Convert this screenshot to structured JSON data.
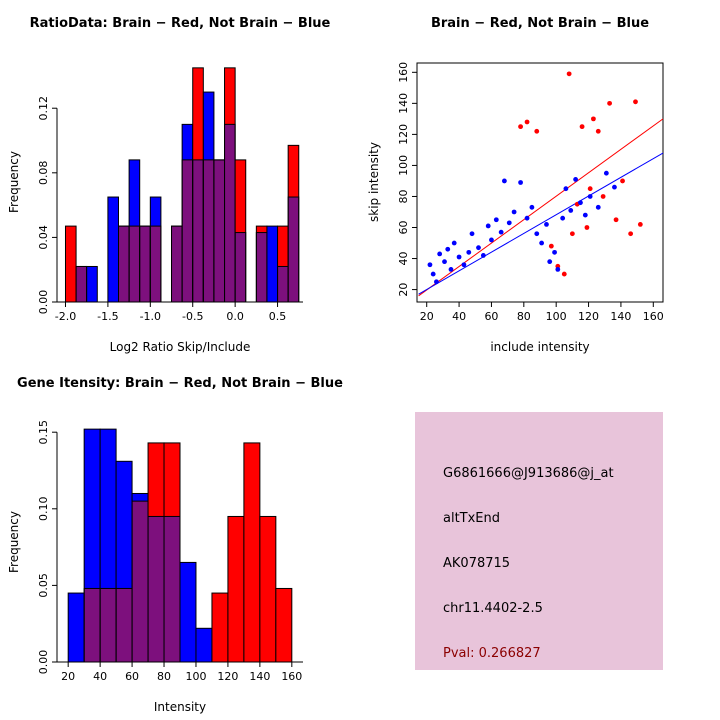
{
  "colors": {
    "red": "#FF0000",
    "blue": "#0000FF",
    "overlap": "#7D107D",
    "bar_border": "#000000",
    "axis": "#000000",
    "info_box_bg": "#E8C4DA",
    "info_text": "#000000",
    "pval_text": "#8B0000",
    "background": "#FFFFFF"
  },
  "chart_data": [
    {
      "id": "ratio-histogram",
      "type": "bar",
      "title": "RatioData: Brain − Red, Not Brain − Blue",
      "xlabel": "Log2 Ratio Skip/Include",
      "ylabel": "Frequency",
      "legend_note": "Brain = red bars, Not Brain = blue bars, overlap = purple",
      "xlim": [
        -2.1,
        0.8
      ],
      "ylim": [
        0,
        0.148
      ],
      "xticks": [
        -2.0,
        -1.5,
        -1.0,
        -0.5,
        0.0,
        0.5
      ],
      "xtick_labels": [
        "-2.0",
        "-1.5",
        "-1.0",
        "-0.5",
        "0.0",
        "0.5"
      ],
      "yticks": [
        0,
        0.04,
        0.08,
        0.12
      ],
      "ytick_labels": [
        "0.00",
        "0.04",
        "0.08",
        "0.12"
      ],
      "bin_width": 0.125,
      "bins": [
        {
          "x": -2.0,
          "red": 0.047,
          "blue": 0.0
        },
        {
          "x": -1.875,
          "red": 0.022,
          "blue": 0.022
        },
        {
          "x": -1.75,
          "red": 0.0,
          "blue": 0.022
        },
        {
          "x": -1.625,
          "red": 0.0,
          "blue": 0.0
        },
        {
          "x": -1.5,
          "red": 0.0,
          "blue": 0.065
        },
        {
          "x": -1.375,
          "red": 0.047,
          "blue": 0.047
        },
        {
          "x": -1.25,
          "red": 0.047,
          "blue": 0.088
        },
        {
          "x": -1.125,
          "red": 0.047,
          "blue": 0.047
        },
        {
          "x": -1.0,
          "red": 0.047,
          "blue": 0.065
        },
        {
          "x": -0.875,
          "red": 0.0,
          "blue": 0.0
        },
        {
          "x": -0.75,
          "red": 0.047,
          "blue": 0.047
        },
        {
          "x": -0.625,
          "red": 0.088,
          "blue": 0.11
        },
        {
          "x": -0.5,
          "red": 0.145,
          "blue": 0.088
        },
        {
          "x": -0.375,
          "red": 0.088,
          "blue": 0.13
        },
        {
          "x": -0.25,
          "red": 0.088,
          "blue": 0.088
        },
        {
          "x": -0.125,
          "red": 0.145,
          "blue": 0.11
        },
        {
          "x": 0.0,
          "red": 0.088,
          "blue": 0.043
        },
        {
          "x": 0.125,
          "red": 0.0,
          "blue": 0.0
        },
        {
          "x": 0.25,
          "red": 0.047,
          "blue": 0.043
        },
        {
          "x": 0.375,
          "red": 0.0,
          "blue": 0.047
        },
        {
          "x": 0.5,
          "red": 0.047,
          "blue": 0.022
        },
        {
          "x": 0.625,
          "red": 0.097,
          "blue": 0.065
        }
      ]
    },
    {
      "id": "intensity-scatter",
      "type": "scatter",
      "title": "Brain − Red, Not Brain − Blue",
      "xlabel": "include intensity",
      "ylabel": "skip intensity",
      "box": true,
      "xlim": [
        14,
        166
      ],
      "ylim": [
        12,
        166
      ],
      "xticks": [
        20,
        40,
        60,
        80,
        100,
        120,
        140,
        160
      ],
      "xtick_labels": [
        "20",
        "40",
        "60",
        "80",
        "100",
        "120",
        "140",
        "160"
      ],
      "yticks": [
        20,
        40,
        60,
        80,
        100,
        120,
        140,
        160
      ],
      "ytick_labels": [
        "20",
        "40",
        "60",
        "80",
        "100",
        "120",
        "140",
        "160"
      ],
      "series": [
        {
          "name": "Brain",
          "key": "brain",
          "color": "#FF0000",
          "points": [
            [
              78,
              125
            ],
            [
              82,
              128
            ],
            [
              88,
              122
            ],
            [
              97,
              48
            ],
            [
              101,
              35
            ],
            [
              105,
              30
            ],
            [
              108,
              159
            ],
            [
              110,
              56
            ],
            [
              113,
              75
            ],
            [
              116,
              125
            ],
            [
              119,
              60
            ],
            [
              121,
              85
            ],
            [
              123,
              130
            ],
            [
              126,
              122
            ],
            [
              129,
              80
            ],
            [
              133,
              140
            ],
            [
              137,
              65
            ],
            [
              141,
              90
            ],
            [
              146,
              56
            ],
            [
              149,
              141
            ],
            [
              152,
              62
            ]
          ]
        },
        {
          "name": "Not Brain",
          "key": "not-brain",
          "color": "#0000FF",
          "points": [
            [
              22,
              36
            ],
            [
              24,
              30
            ],
            [
              26,
              25
            ],
            [
              28,
              43
            ],
            [
              31,
              38
            ],
            [
              33,
              46
            ],
            [
              35,
              33
            ],
            [
              37,
              50
            ],
            [
              40,
              41
            ],
            [
              43,
              36
            ],
            [
              46,
              44
            ],
            [
              48,
              56
            ],
            [
              52,
              47
            ],
            [
              55,
              42
            ],
            [
              58,
              61
            ],
            [
              60,
              52
            ],
            [
              63,
              65
            ],
            [
              66,
              57
            ],
            [
              68,
              90
            ],
            [
              71,
              63
            ],
            [
              74,
              70
            ],
            [
              78,
              89
            ],
            [
              82,
              66
            ],
            [
              85,
              73
            ],
            [
              88,
              56
            ],
            [
              91,
              50
            ],
            [
              94,
              62
            ],
            [
              96,
              38
            ],
            [
              99,
              44
            ],
            [
              101,
              33
            ],
            [
              104,
              66
            ],
            [
              106,
              85
            ],
            [
              109,
              71
            ],
            [
              112,
              91
            ],
            [
              115,
              76
            ],
            [
              118,
              68
            ],
            [
              121,
              80
            ],
            [
              126,
              73
            ],
            [
              131,
              95
            ],
            [
              136,
              86
            ]
          ]
        }
      ],
      "lines": [
        {
          "key": "brain-fit",
          "color": "#FF0000",
          "x1": 15,
          "y1": 16,
          "x2": 166,
          "y2": 130
        },
        {
          "key": "not-brain-fit",
          "color": "#0000FF",
          "x1": 15,
          "y1": 17,
          "x2": 166,
          "y2": 108
        }
      ]
    },
    {
      "id": "gene-intensity-histogram",
      "type": "bar",
      "title": "Gene Itensity: Brain − Red, Not Brain − Blue",
      "xlabel": "Intensity",
      "ylabel": "Frequency",
      "legend_note": "Brain = red bars, Not Brain = blue bars, overlap = purple",
      "xlim": [
        13,
        167
      ],
      "ylim": [
        0,
        0.156
      ],
      "xticks": [
        20,
        40,
        60,
        80,
        100,
        120,
        140,
        160
      ],
      "xtick_labels": [
        "20",
        "40",
        "60",
        "80",
        "100",
        "120",
        "140",
        "160"
      ],
      "yticks": [
        0,
        0.05,
        0.1,
        0.15
      ],
      "ytick_labels": [
        "0.00",
        "0.05",
        "0.10",
        "0.15"
      ],
      "bin_width": 10,
      "bins": [
        {
          "x": 20,
          "red": 0.0,
          "blue": 0.045
        },
        {
          "x": 30,
          "red": 0.048,
          "blue": 0.152
        },
        {
          "x": 40,
          "red": 0.048,
          "blue": 0.152
        },
        {
          "x": 50,
          "red": 0.048,
          "blue": 0.131
        },
        {
          "x": 60,
          "red": 0.105,
          "blue": 0.11
        },
        {
          "x": 70,
          "red": 0.143,
          "blue": 0.095
        },
        {
          "x": 80,
          "red": 0.143,
          "blue": 0.095
        },
        {
          "x": 90,
          "red": 0.0,
          "blue": 0.065
        },
        {
          "x": 100,
          "red": 0.0,
          "blue": 0.022
        },
        {
          "x": 110,
          "red": 0.045,
          "blue": 0.0
        },
        {
          "x": 120,
          "red": 0.095,
          "blue": 0.0
        },
        {
          "x": 130,
          "red": 0.143,
          "blue": 0.0
        },
        {
          "x": 140,
          "red": 0.095,
          "blue": 0.0
        },
        {
          "x": 150,
          "red": 0.048,
          "blue": 0.0
        }
      ]
    }
  ],
  "info_box": {
    "lines": [
      "G6861666@J913686@j_at",
      "altTxEnd",
      "AK078715",
      "chr11.4402-2.5"
    ],
    "pval": "Pval: 0.266827"
  }
}
